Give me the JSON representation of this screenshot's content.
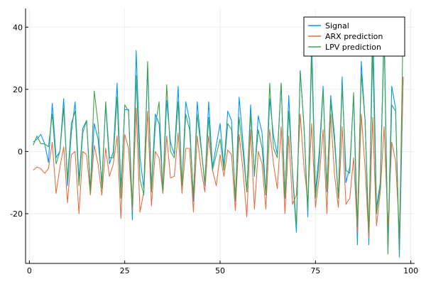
{
  "chart_data": {
    "type": "line",
    "title": "",
    "xlabel": "",
    "ylabel": "",
    "xlim": [
      -1,
      101
    ],
    "ylim": [
      -36,
      46
    ],
    "xticks": [
      0,
      25,
      50,
      75,
      100
    ],
    "yticks": [
      -20,
      0,
      20,
      40
    ],
    "grid": true,
    "legend_position": "top-right",
    "series": [
      {
        "name": "Signal",
        "color": "#009af9",
        "values": [
          3,
          4,
          5.5,
          2.5,
          -3.5,
          15.5,
          -2,
          0,
          17,
          -11,
          6,
          16,
          -9,
          7.5,
          10,
          -12,
          9,
          4,
          -10,
          15,
          -4,
          0,
          22,
          -12,
          13.5,
          13.5,
          -22,
          32.5,
          -2,
          -12,
          27,
          -12,
          12,
          9,
          -13,
          16.5,
          3,
          -1,
          21,
          -11,
          16,
          10,
          -16,
          16,
          2,
          -11,
          16,
          -5,
          2,
          9,
          -5,
          13,
          10,
          -16,
          17.5,
          3,
          -13,
          15,
          -8,
          11.5,
          6,
          -14,
          17,
          5,
          -1,
          22,
          -15,
          18,
          -8,
          -26,
          26,
          8,
          -21,
          36,
          -13,
          0,
          21,
          -13,
          18,
          5,
          -15,
          24,
          -10,
          -5,
          18,
          -30,
          29,
          10,
          -30,
          43,
          -18,
          -10,
          40,
          -31,
          21,
          14,
          -34,
          24
        ]
      },
      {
        "name": "ARX prediction",
        "color": "#e26f46",
        "values": [
          -6,
          -5,
          -5.5,
          -7,
          -5.5,
          3,
          -13.5,
          -5,
          1.5,
          -16.5,
          -1,
          0,
          -20,
          0,
          -1,
          -14,
          2,
          -4,
          -14,
          1,
          -8,
          -4,
          5,
          -21.5,
          5.5,
          1,
          -19,
          14,
          -19.5,
          -13,
          13,
          -17.5,
          0,
          -2,
          -13.5,
          5,
          -8.5,
          -8,
          6,
          -13.5,
          1,
          1,
          -19.5,
          5,
          -5.5,
          -13,
          5,
          -6,
          -11,
          -1,
          -8,
          0.5,
          -1,
          -19,
          5.5,
          -6,
          -21,
          7,
          -18.5,
          0,
          -4,
          -18.5,
          7,
          -4,
          -12,
          8,
          -20,
          5,
          -17,
          -14,
          12,
          -5,
          -16,
          9,
          -18,
          -8,
          7,
          -20,
          12,
          -7.5,
          -18,
          8,
          -17,
          -15,
          -2,
          -26,
          12,
          -5,
          -28,
          11,
          -24,
          -13,
          8,
          -24,
          3,
          -3,
          -26,
          24
        ]
      },
      {
        "name": "LPV prediction",
        "color": "#3da44d",
        "values": [
          2,
          5,
          2.5,
          2.5,
          1.5,
          12,
          -4,
          0,
          14,
          -9,
          9,
          13,
          -11,
          6,
          10,
          -13,
          19.5,
          9,
          -12,
          16,
          -2,
          -2,
          17.5,
          -15,
          15,
          13,
          -18,
          24.5,
          -9,
          -14,
          29,
          -13,
          8,
          16,
          -13,
          21.5,
          0,
          -2,
          16,
          -11,
          12,
          7,
          -14,
          12,
          1,
          -10,
          11,
          -6,
          -1,
          4,
          -6,
          9,
          7,
          -15,
          11,
          0,
          -13,
          12,
          -7,
          7,
          1,
          -14,
          22,
          1,
          -2,
          22,
          -15,
          13,
          -7,
          -24,
          26,
          8,
          -19,
          31,
          -15,
          -3,
          20,
          -12,
          16,
          3,
          -15,
          21,
          -6,
          -7,
          19,
          -24,
          25,
          10,
          -26,
          33,
          -20,
          -11,
          37,
          -33,
          15,
          13,
          -32,
          43
        ]
      }
    ]
  }
}
